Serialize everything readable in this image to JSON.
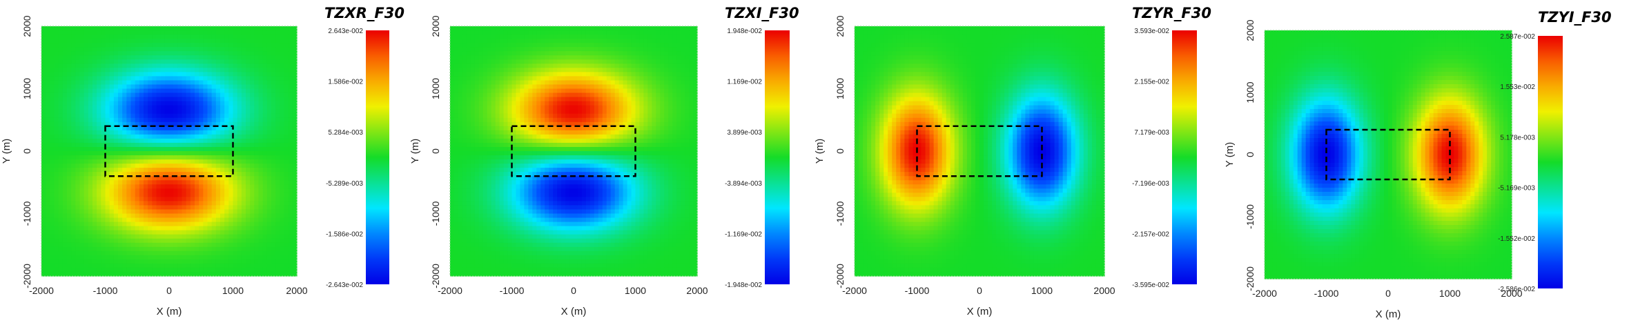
{
  "chart_data": [
    {
      "type": "heatmap",
      "title": "TZXR_F30",
      "xlabel": "X (m)",
      "ylabel": "Y (m)",
      "xlim": [
        -2000,
        2000
      ],
      "ylim": [
        -2000,
        2000
      ],
      "xticks": [
        "-2000",
        "-1000",
        "0",
        "1000",
        "2000"
      ],
      "yticks": [
        "2000",
        "1000",
        "0",
        "-1000",
        "-2000"
      ],
      "colorbar_labels": [
        "2.643e-002",
        "1.586e-002",
        "5.284e-003",
        "-5.289e-003",
        "-1.586e-002",
        "-2.643e-002"
      ],
      "colorbar_range": [
        -0.02643,
        0.02643
      ],
      "pattern": "y-dipole",
      "sign": 1,
      "rectangle": {
        "x": [
          -1000,
          1000
        ],
        "y": [
          -400,
          400
        ]
      },
      "rect_outline_color": "#000000"
    },
    {
      "type": "heatmap",
      "title": "TZXI_F30",
      "xlabel": "X (m)",
      "ylabel": "Y (m)",
      "xlim": [
        -2000,
        2000
      ],
      "ylim": [
        -2000,
        2000
      ],
      "xticks": [
        "-2000",
        "-1000",
        "0",
        "1000",
        "2000"
      ],
      "yticks": [
        "2000",
        "1000",
        "0",
        "-1000",
        "-2000"
      ],
      "colorbar_labels": [
        "1.948e-002",
        "1.169e-002",
        "3.899e-003",
        "-3.894e-003",
        "-1.169e-002",
        "-1.948e-002"
      ],
      "colorbar_range": [
        -0.01948,
        0.01948
      ],
      "pattern": "y-dipole",
      "sign": -1,
      "rectangle": {
        "x": [
          -1000,
          1000
        ],
        "y": [
          -400,
          400
        ]
      },
      "rect_outline_color": "#000000"
    },
    {
      "type": "heatmap",
      "title": "TZYR_F30",
      "xlabel": "X (m)",
      "ylabel": "Y (m)",
      "xlim": [
        -2000,
        2000
      ],
      "ylim": [
        -2000,
        2000
      ],
      "xticks": [
        "-2000",
        "-1000",
        "0",
        "1000",
        "2000"
      ],
      "yticks": [
        "2000",
        "1000",
        "0",
        "-1000",
        "-2000"
      ],
      "colorbar_labels": [
        "3.593e-002",
        "2.155e-002",
        "7.179e-003",
        "-7.196e-003",
        "-2.157e-002",
        "-3.595e-002"
      ],
      "colorbar_range": [
        -0.03595,
        0.03593
      ],
      "pattern": "x-dipole",
      "sign": 1,
      "rectangle": {
        "x": [
          -1000,
          1000
        ],
        "y": [
          -400,
          400
        ]
      },
      "rect_outline_color": "#000000"
    },
    {
      "type": "heatmap",
      "title": "TZYI_F30",
      "xlabel": "X (m)",
      "ylabel": "Y (m)",
      "xlim": [
        -2000,
        2000
      ],
      "ylim": [
        -2000,
        2000
      ],
      "xticks": [
        "-2000",
        "-1000",
        "0",
        "1000",
        "2000"
      ],
      "yticks": [
        "2000",
        "1000",
        "0",
        "-1000",
        "-2000"
      ],
      "colorbar_labels": [
        "2.587e-002",
        "1.553e-002",
        "5.178e-003",
        "-5.169e-003",
        "-1.552e-002",
        "-2.586e-002"
      ],
      "colorbar_range": [
        -0.02586,
        0.02587
      ],
      "pattern": "x-dipole",
      "sign": -1,
      "rectangle": {
        "x": [
          -1000,
          1000
        ],
        "y": [
          -400,
          400
        ]
      },
      "rect_outline_color": "#000000"
    }
  ]
}
